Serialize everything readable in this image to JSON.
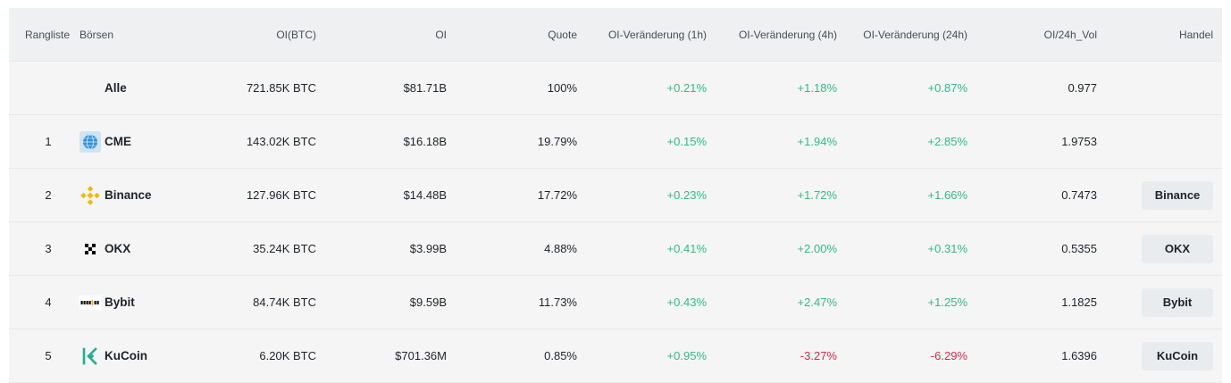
{
  "headers": {
    "rank": "Rangliste",
    "exchange": "Börsen",
    "oi_btc": "OI(BTC)",
    "oi": "OI",
    "quote": "Quote",
    "change_1h": "OI-Veränderung (1h)",
    "change_4h": "OI-Veränderung (4h)",
    "change_24h": "OI-Veränderung (24h)",
    "oi_vol": "OI/24h_Vol",
    "trade": "Handel"
  },
  "total": {
    "name": "Alle",
    "oi_btc": "721.85K BTC",
    "oi": "$81.71B",
    "quote": "100%",
    "change_1h": "+0.21%",
    "change_4h": "+1.18%",
    "change_24h": "+0.87%",
    "oi_vol": "0.977"
  },
  "rows": [
    {
      "rank": "1",
      "name": "CME",
      "icon": "cme-globe-icon",
      "oi_btc": "143.02K BTC",
      "oi": "$16.18B",
      "quote": "19.79%",
      "change_1h": "+0.15%",
      "change_4h": "+1.94%",
      "change_24h": "+2.85%",
      "oi_vol": "1.9753",
      "trade": ""
    },
    {
      "rank": "2",
      "name": "Binance",
      "icon": "binance-logo-icon",
      "oi_btc": "127.96K BTC",
      "oi": "$14.48B",
      "quote": "17.72%",
      "change_1h": "+0.23%",
      "change_4h": "+1.72%",
      "change_24h": "+1.66%",
      "oi_vol": "0.7473",
      "trade": "Binance"
    },
    {
      "rank": "3",
      "name": "OKX",
      "icon": "okx-logo-icon",
      "oi_btc": "35.24K BTC",
      "oi": "$3.99B",
      "quote": "4.88%",
      "change_1h": "+0.41%",
      "change_4h": "+2.00%",
      "change_24h": "+0.31%",
      "oi_vol": "0.5355",
      "trade": "OKX"
    },
    {
      "rank": "4",
      "name": "Bybit",
      "icon": "bybit-logo-icon",
      "oi_btc": "84.74K BTC",
      "oi": "$9.59B",
      "quote": "11.73%",
      "change_1h": "+0.43%",
      "change_4h": "+2.47%",
      "change_24h": "+1.25%",
      "oi_vol": "1.1825",
      "trade": "Bybit"
    },
    {
      "rank": "5",
      "name": "KuCoin",
      "icon": "kucoin-logo-icon",
      "oi_btc": "6.20K BTC",
      "oi": "$701.36M",
      "quote": "0.85%",
      "change_1h": "+0.95%",
      "change_4h": "-3.27%",
      "change_24h": "-6.29%",
      "oi_vol": "1.6396",
      "trade": "KuCoin"
    }
  ],
  "colors": {
    "positive": "#2ebd85",
    "negative": "#e0294a",
    "binance_yellow": "#f0b90b",
    "kucoin_green": "#23af91"
  }
}
